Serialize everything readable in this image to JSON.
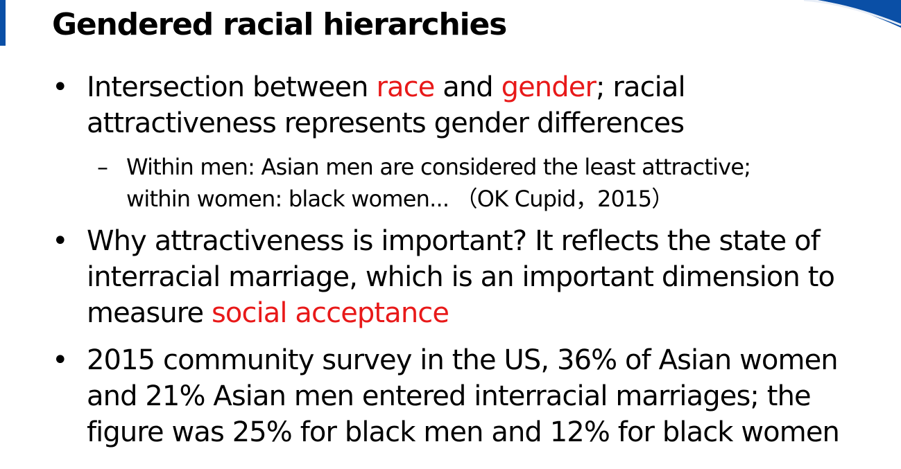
{
  "slide": {
    "title": "Gendered racial hierarchies",
    "bullet_marker": "•",
    "sub_marker": "–",
    "bullets": [
      {
        "line1_a": "Intersection between ",
        "line1_b": "race",
        "line1_c": " and ",
        "line1_d": "gender",
        "line1_e": "; racial",
        "line2": "attractiveness represents gender differences",
        "sub": {
          "line1": "Within men: Asian men are considered the least attractive;",
          "line2": "within women: black women... （OK Cupid，2015）"
        }
      },
      {
        "line1": "Why attractiveness is important? It reflects the state of",
        "line2": "interracial marriage, which is an important dimension to",
        "line3_a": "measure ",
        "line3_b": "social acceptance"
      },
      {
        "line1": "2015 community survey in the US, 36% of Asian women",
        "line2": "and 21% Asian men entered interracial marriages; the",
        "line3": "figure was 25% for black men and 12% for black women"
      }
    ]
  },
  "colors": {
    "emphasis": "#e81919",
    "accent": "#0a4fa6"
  }
}
